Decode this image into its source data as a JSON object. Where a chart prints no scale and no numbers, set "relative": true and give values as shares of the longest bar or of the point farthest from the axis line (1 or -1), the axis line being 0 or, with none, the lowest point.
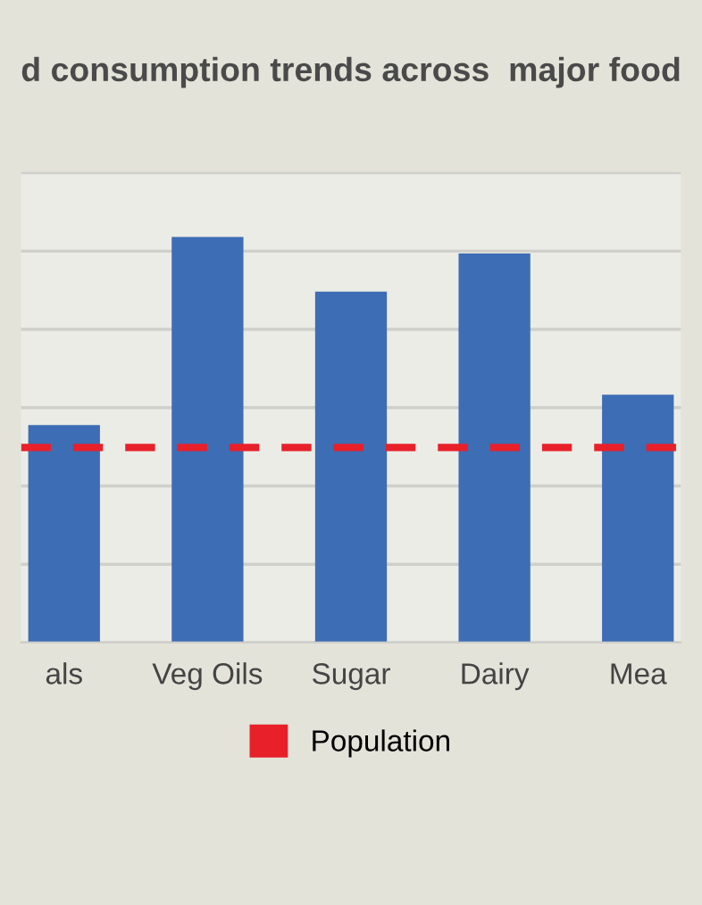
{
  "chart_data": {
    "type": "bar",
    "title": "d consumption trends across  major food",
    "categories": [
      "als",
      "Veg Oils",
      "Sugar",
      "Dairy",
      "Mea"
    ],
    "values": [
      0.536,
      1,
      0.865,
      0.959,
      0.611
    ],
    "color": "#3d6db5",
    "relative": true,
    "grid": "y",
    "legend": "bottom",
    "ref_lines": [
      {
        "axis": "y",
        "value": 0.481,
        "label": "Population",
        "color": "#e8202a",
        "line_style": "dashed"
      }
    ]
  }
}
